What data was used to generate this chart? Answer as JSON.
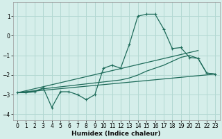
{
  "xlabel": "Humidex (Indice chaleur)",
  "xlim": [
    -0.5,
    23.5
  ],
  "ylim": [
    -4.3,
    1.7
  ],
  "xticks": [
    0,
    1,
    2,
    3,
    4,
    5,
    6,
    7,
    8,
    9,
    10,
    11,
    12,
    13,
    14,
    15,
    16,
    17,
    18,
    19,
    20,
    21,
    22,
    23
  ],
  "yticks": [
    -4,
    -3,
    -2,
    -1,
    0,
    1
  ],
  "background_color": "#d5eeea",
  "grid_color": "#b2d8d2",
  "line_color": "#1e6b5a",
  "series_main": {
    "x": [
      0,
      1,
      2,
      3,
      4,
      5,
      6,
      7,
      8,
      9,
      10,
      11,
      12,
      13,
      14,
      15,
      16,
      17,
      18,
      19,
      20,
      21,
      22,
      23
    ],
    "y": [
      -2.9,
      -2.9,
      -2.85,
      -2.65,
      -3.65,
      -2.85,
      -2.85,
      -3.0,
      -3.25,
      -3.0,
      -1.65,
      -1.5,
      -1.65,
      -0.45,
      1.0,
      1.1,
      1.1,
      0.35,
      -0.65,
      -0.6,
      -1.1,
      -1.15,
      -1.9,
      -1.95
    ]
  },
  "series_smooth": {
    "x": [
      0,
      1,
      2,
      3,
      4,
      5,
      6,
      7,
      8,
      9,
      10,
      11,
      12,
      13,
      14,
      15,
      16,
      17,
      18,
      19,
      20,
      21,
      22,
      23
    ],
    "y": [
      -2.9,
      -2.85,
      -2.8,
      -2.7,
      -2.65,
      -2.6,
      -2.55,
      -2.5,
      -2.45,
      -2.4,
      -2.35,
      -2.3,
      -2.25,
      -2.15,
      -2.0,
      -1.8,
      -1.65,
      -1.5,
      -1.3,
      -1.1,
      -1.0,
      -1.15,
      -1.9,
      -1.95
    ]
  },
  "series_line1": {
    "x": [
      0,
      23
    ],
    "y": [
      -2.9,
      -1.95
    ]
  },
  "series_line2": {
    "x": [
      0,
      21
    ],
    "y": [
      -2.9,
      -0.75
    ]
  }
}
